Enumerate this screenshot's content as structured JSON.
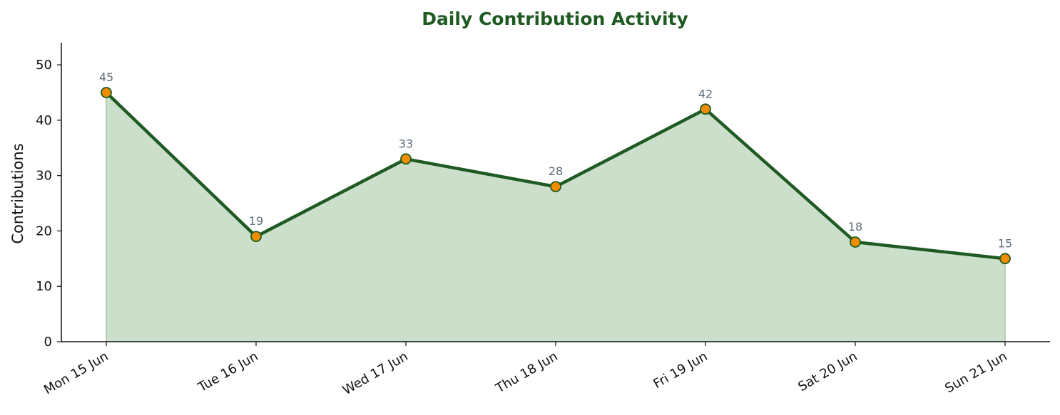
{
  "chart_data": {
    "type": "area",
    "title": "Daily Contribution Activity",
    "xlabel": "",
    "ylabel": "Contributions",
    "categories": [
      "Mon 15 Jun",
      "Tue 16 Jun",
      "Wed 17 Jun",
      "Thu 18 Jun",
      "Fri 19 Jun",
      "Sat 20 Jun",
      "Sun 21 Jun"
    ],
    "values": [
      45,
      19,
      33,
      28,
      42,
      18,
      15
    ],
    "ylim": [
      0,
      54
    ],
    "yticks": [
      0,
      10,
      20,
      30,
      40,
      50
    ],
    "grid": false,
    "legend": "none",
    "data_labels": true,
    "colors": {
      "line": "#1e5a22",
      "fill": "#cbdfcb",
      "marker_fill": "#f08c00",
      "marker_edge": "#1e5a22",
      "title": "#1e5a22",
      "data_label": "#5c6b7a"
    }
  }
}
